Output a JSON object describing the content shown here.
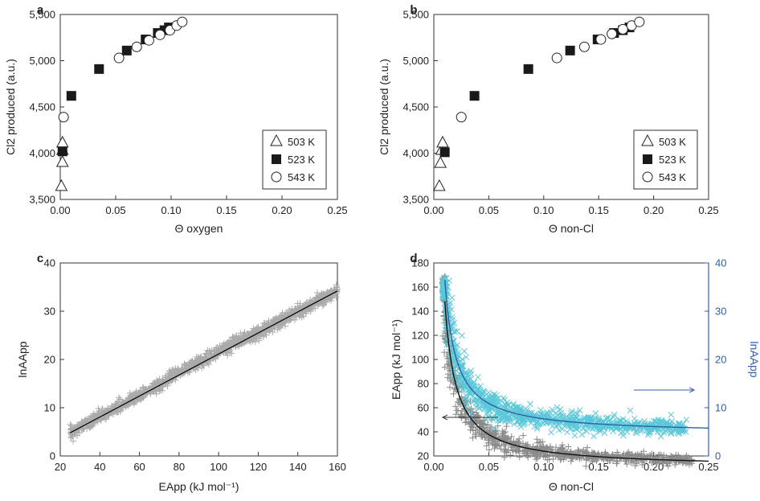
{
  "chart_data": [
    {
      "panel": "a",
      "type": "scatter",
      "xlabel": "Θ oxygen",
      "ylabel": "Cl2 produced (a.u.)",
      "xlim": [
        0,
        0.25
      ],
      "ylim": [
        3500,
        5500
      ],
      "xticks": [
        "0.00",
        "0.05",
        "0.10",
        "0.15",
        "0.20",
        "0.25"
      ],
      "yticks": [
        "3,500",
        "4,000",
        "4,500",
        "5,000",
        "5,500"
      ],
      "legend": {
        "placement": "bottom-right",
        "entries": [
          "503 K",
          "523 K",
          "543 K"
        ]
      },
      "series": [
        {
          "name": "503 K",
          "marker": "triangle",
          "x": [
            0.001,
            0.002,
            0.002,
            0.002
          ],
          "y": [
            3640,
            3900,
            4030,
            4110
          ]
        },
        {
          "name": "523 K",
          "marker": "square",
          "x": [
            0.002,
            0.01,
            0.035,
            0.06,
            0.077,
            0.088,
            0.094,
            0.098
          ],
          "y": [
            4020,
            4620,
            4910,
            5110,
            5230,
            5300,
            5330,
            5360
          ]
        },
        {
          "name": "543 K",
          "marker": "circle",
          "x": [
            0.003,
            0.053,
            0.069,
            0.08,
            0.09,
            0.099,
            0.105,
            0.11
          ],
          "y": [
            4390,
            5030,
            5150,
            5220,
            5280,
            5330,
            5380,
            5420
          ]
        }
      ]
    },
    {
      "panel": "b",
      "type": "scatter",
      "xlabel": "Θ non-Cl",
      "ylabel": "Cl2 produced (a.u.)",
      "xlim": [
        0,
        0.25
      ],
      "ylim": [
        3500,
        5500
      ],
      "xticks": [
        "0.00",
        "0.05",
        "0.10",
        "0.15",
        "0.20",
        "0.25"
      ],
      "yticks": [
        "3,500",
        "4,000",
        "4,500",
        "5,000",
        "5,500"
      ],
      "legend": {
        "placement": "bottom-right",
        "entries": [
          "503 K",
          "523 K",
          "543 K"
        ]
      },
      "series": [
        {
          "name": "503 K",
          "marker": "triangle",
          "x": [
            0.005,
            0.006,
            0.007,
            0.008
          ],
          "y": [
            3640,
            3890,
            4030,
            4110
          ]
        },
        {
          "name": "523 K",
          "marker": "square",
          "x": [
            0.01,
            0.037,
            0.086,
            0.124,
            0.149,
            0.164,
            0.172,
            0.178
          ],
          "y": [
            4010,
            4620,
            4910,
            5110,
            5230,
            5300,
            5330,
            5360
          ]
        },
        {
          "name": "543 K",
          "marker": "circle",
          "x": [
            0.025,
            0.112,
            0.137,
            0.152,
            0.162,
            0.172,
            0.18,
            0.187
          ],
          "y": [
            4390,
            5030,
            5150,
            5230,
            5290,
            5340,
            5380,
            5420
          ]
        }
      ]
    },
    {
      "panel": "c",
      "type": "scatter",
      "xlabel": "EApp (kJ mol⁻¹)",
      "ylabel": "lnAApp",
      "xlim": [
        20,
        160
      ],
      "ylim": [
        0,
        40
      ],
      "xticks": [
        "20",
        "40",
        "60",
        "80",
        "100",
        "120",
        "140",
        "160"
      ],
      "yticks": [
        "0",
        "10",
        "20",
        "30",
        "40"
      ],
      "series": [
        {
          "marker": "plus",
          "color": "#aaaaaa",
          "x_range": [
            25,
            160
          ],
          "fit": {
            "slope": 0.218,
            "intercept": -0.6
          },
          "spread": 1.1
        },
        {
          "marker": "line",
          "color": "#000000",
          "x": [
            25,
            160
          ],
          "y": [
            4.8,
            34.2
          ]
        }
      ]
    },
    {
      "panel": "d",
      "type": "scatter",
      "xlabel": "Θ non-Cl",
      "ylabel": "EApp (kJ mol⁻¹)",
      "ylabel_right": "lnAApp",
      "xlim": [
        0,
        0.25
      ],
      "ylim": [
        20,
        180
      ],
      "ylim_right": [
        0,
        40
      ],
      "xticks": [
        "0.00",
        "0.05",
        "0.10",
        "0.15",
        "0.20",
        "0.25"
      ],
      "yticks": [
        "20",
        "40",
        "60",
        "80",
        "100",
        "120",
        "140",
        "160",
        "180"
      ],
      "yticks_right": [
        "0",
        "10",
        "20",
        "30",
        "40"
      ],
      "colors": {
        "left": "#8a8a8a",
        "right": "#5bc8d8",
        "right_axis": "#2f5fa8"
      },
      "series": [
        {
          "axis": "left",
          "marker": "plus",
          "color": "#8a8a8a",
          "x_range": [
            0.008,
            0.235
          ],
          "fit": {
            "form": "a+b/x",
            "a": 10.2,
            "b": 1.38
          }
        },
        {
          "axis": "right",
          "marker": "x",
          "color": "#5bc8d8",
          "x_range": [
            0.008,
            0.23
          ],
          "fit": {
            "form": "a+b/x",
            "a": 4.5,
            "b": 0.32
          }
        },
        {
          "axis": "left",
          "marker": "line",
          "color": "#111111",
          "fit": {
            "form": "a+b/x",
            "a": 10.2,
            "b": 1.38
          },
          "x_range": [
            0.01,
            0.25
          ]
        },
        {
          "axis": "right",
          "marker": "line",
          "color": "#2f5fa8",
          "fit": {
            "form": "a+b/x",
            "a": 4.5,
            "b": 0.32
          },
          "x_range": [
            0.01,
            0.25
          ]
        }
      ]
    }
  ]
}
